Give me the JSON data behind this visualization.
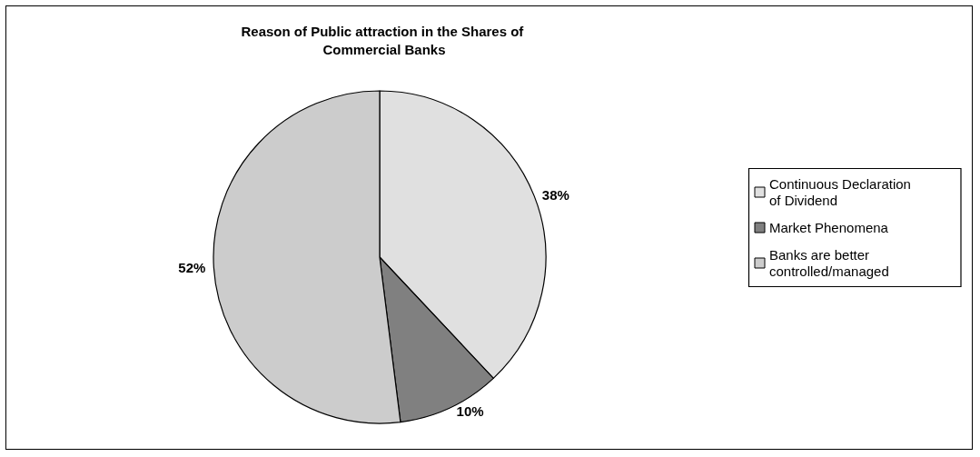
{
  "chart_data": {
    "type": "pie",
    "title": "Reason of Public attraction in the Shares of Commercial Banks",
    "categories": [
      "Continuous Declaration of Dividend",
      "Market Phenomena",
      "Banks are better controlled/managed"
    ],
    "values": [
      38,
      10,
      52
    ],
    "colors": [
      "#e0e0e0",
      "#808080",
      "#cccccc"
    ],
    "value_labels": [
      "38%",
      "10%",
      "52%"
    ],
    "legend": "right"
  }
}
